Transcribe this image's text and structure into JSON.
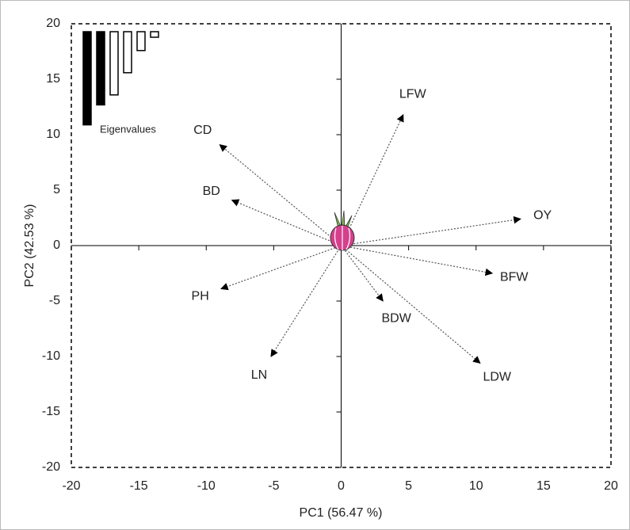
{
  "chart_data": {
    "type": "biplot",
    "xlabel": "PC1 (56.47 %)",
    "ylabel": "PC2 (42.53 %)",
    "xlim": [
      -20,
      20
    ],
    "ylim": [
      -20,
      20
    ],
    "xticks": [
      -20,
      -15,
      -10,
      -5,
      0,
      5,
      10,
      15,
      20
    ],
    "yticks": [
      -20,
      -15,
      -10,
      -5,
      0,
      5,
      10,
      15,
      20
    ],
    "vectors": {
      "labels": [
        "LFW",
        "OY",
        "BFW",
        "LDW",
        "BDW",
        "LN",
        "PH",
        "BD",
        "CD"
      ],
      "x": [
        4.6,
        13.3,
        11.2,
        10.3,
        3.1,
        -5.2,
        -8.9,
        -8.1,
        -9.0
      ],
      "y": [
        11.8,
        2.4,
        -2.5,
        -10.6,
        -5.0,
        -10.0,
        -3.9,
        4.1,
        9.1
      ]
    },
    "eigen_title": "Eigenvalues",
    "eigenvalues": [
      8.4,
      6.6,
      5.7,
      3.7,
      1.7,
      0.5
    ],
    "eigen_colors": [
      "#000000",
      "#000000",
      "#ffffff",
      "#ffffff",
      "#ffffff",
      "#ffffff"
    ]
  }
}
